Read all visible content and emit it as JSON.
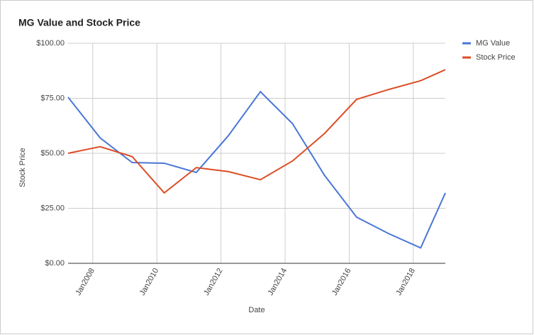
{
  "chart_data": {
    "type": "line",
    "title": "MG Value and Stock Price",
    "x_label": "Date",
    "y_label": "Stock Price",
    "x": [
      2007.23,
      2008.23,
      2009.23,
      2010.23,
      2011.23,
      2012.23,
      2013.23,
      2014.23,
      2015.23,
      2016.23,
      2017.23,
      2018.23,
      2019.0
    ],
    "series": [
      {
        "name": "MG Value",
        "color": "#4a77d5",
        "values": [
          75.5,
          57,
          45.8,
          45.5,
          41.3,
          58,
          78,
          63.5,
          40,
          21,
          13.5,
          7,
          32
        ]
      },
      {
        "name": "Stock Price",
        "color": "#dc4e26",
        "values": [
          50,
          53,
          48.5,
          32,
          43.5,
          41.7,
          38,
          46.5,
          59,
          74.5,
          79,
          83,
          88
        ]
      }
    ],
    "xlim": [
      2007.23,
      2019.0
    ],
    "xticks": [
      {
        "value": 2008,
        "label": "Jan2008"
      },
      {
        "value": 2010,
        "label": "Jan2010"
      },
      {
        "value": 2012,
        "label": "Jan2012"
      },
      {
        "value": 2014,
        "label": "Jan2014"
      },
      {
        "value": 2016,
        "label": "Jan2016"
      },
      {
        "value": 2018,
        "label": "Jan2018"
      }
    ],
    "ylim": [
      0,
      100
    ],
    "yticks": [
      {
        "value": 0,
        "label": "$0.00"
      },
      {
        "value": 25,
        "label": "$25.00"
      },
      {
        "value": 50,
        "label": "$50.00"
      },
      {
        "value": 75,
        "label": "$75.00"
      },
      {
        "value": 100,
        "label": "$100.00"
      }
    ],
    "grid": true,
    "legend": "right"
  }
}
